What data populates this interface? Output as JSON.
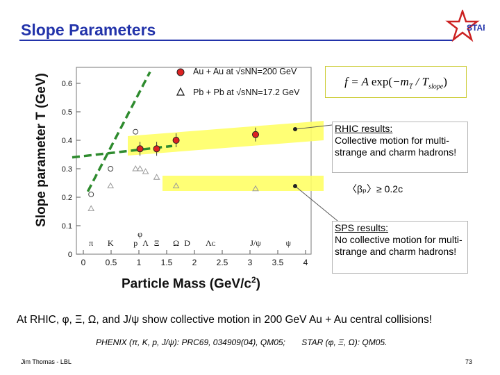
{
  "slide": {
    "title": "Slope Parameters",
    "logo_text": "STAR",
    "summary": "At RHIC, φ, Ξ, Ω, and J/ψ show collective motion in 200 GeV Au + Au central collisions!",
    "ref_phenix": "PHENIX (π, K, p, J/ψ): PRC69, 034909(04), QM05;",
    "ref_star": "STAR (φ, Ξ, Ω): QM05.",
    "footer_left": "Jim Thomas - LBL",
    "page_number": "73",
    "accent_color": "#2233aa"
  },
  "formula": "f = A • exp(−m_T / T_slope)",
  "formula_parts": {
    "lhs": "f = A",
    "exp": "exp",
    "num": "−m",
    "num_sub": "T",
    "den": "T",
    "den_sub": "slope"
  },
  "annotations": {
    "rhic_head": "RHIC results:",
    "rhic_body": "Collective motion for multi-strange and charm hadrons!",
    "beta_text": "〈βₚ〉≥ 0.2c",
    "sps_head": "SPS results:",
    "sps_body": "No collective motion for multi-strange and charm hadrons!"
  },
  "chart_data": {
    "type": "scatter",
    "xlabel": "Particle Mass (GeV/c",
    "xlabel_sup": "2",
    "xlabel_tail": ")",
    "ylabel": "Slope parameter T (GeV)",
    "xlim": [
      0,
      4
    ],
    "ylim": [
      0,
      0.65
    ],
    "x_ticks": [
      "0",
      "0.5",
      "1",
      "1.5",
      "2",
      "2.5",
      "3",
      "3.5",
      "4"
    ],
    "y_ticks": [
      "0",
      "0.1",
      "0.2",
      "0.3",
      "0.4",
      "0.5",
      "0.6"
    ],
    "particle_labels": [
      {
        "label": "π",
        "x": 0.14
      },
      {
        "label": "K",
        "x": 0.49
      },
      {
        "label": "p",
        "x": 0.94
      },
      {
        "label": "Λ",
        "x": 1.12
      },
      {
        "label": "Ξ",
        "x": 1.32
      },
      {
        "label": "Ω",
        "x": 1.67
      },
      {
        "label": "D",
        "x": 1.87
      },
      {
        "label": "Λᴄ",
        "x": 2.29
      },
      {
        "label": "J/ψ",
        "x": 3.1
      },
      {
        "label": "ψ",
        "x": 3.69
      }
    ],
    "phi_label": {
      "label": "φ",
      "x": 1.02
    },
    "series": [
      {
        "name": "Au + Au at √sNN=200 GeV",
        "marker": "circle-filled",
        "points": [
          [
            1.02,
            0.37
          ],
          [
            1.32,
            0.37
          ],
          [
            1.67,
            0.4
          ],
          [
            3.1,
            0.42
          ]
        ]
      },
      {
        "name": "Au + Au at √sNN=200 GeV (π, K, p)",
        "marker": "circle-open",
        "points": [
          [
            0.14,
            0.21
          ],
          [
            0.49,
            0.3
          ],
          [
            0.94,
            0.43
          ]
        ]
      },
      {
        "name": "Pb + Pb at √sNN=17.2 GeV",
        "marker": "triangle-open",
        "points": [
          [
            0.14,
            0.16
          ],
          [
            0.49,
            0.24
          ],
          [
            0.94,
            0.3
          ],
          [
            1.02,
            0.3
          ],
          [
            1.12,
            0.29
          ],
          [
            1.32,
            0.27
          ],
          [
            1.67,
            0.24
          ],
          [
            3.1,
            0.23
          ]
        ]
      }
    ],
    "legend": [
      {
        "text": "Au + Au at √sNN=200 GeV",
        "marker": "circle-filled"
      },
      {
        "text": "Pb + Pb at √sNN=17.2 GeV",
        "marker": "triangle-open"
      }
    ],
    "colors": {
      "rhic": "#dd2222",
      "sps_band": "#ffff66",
      "fit_line": "#2e8b2e"
    }
  }
}
